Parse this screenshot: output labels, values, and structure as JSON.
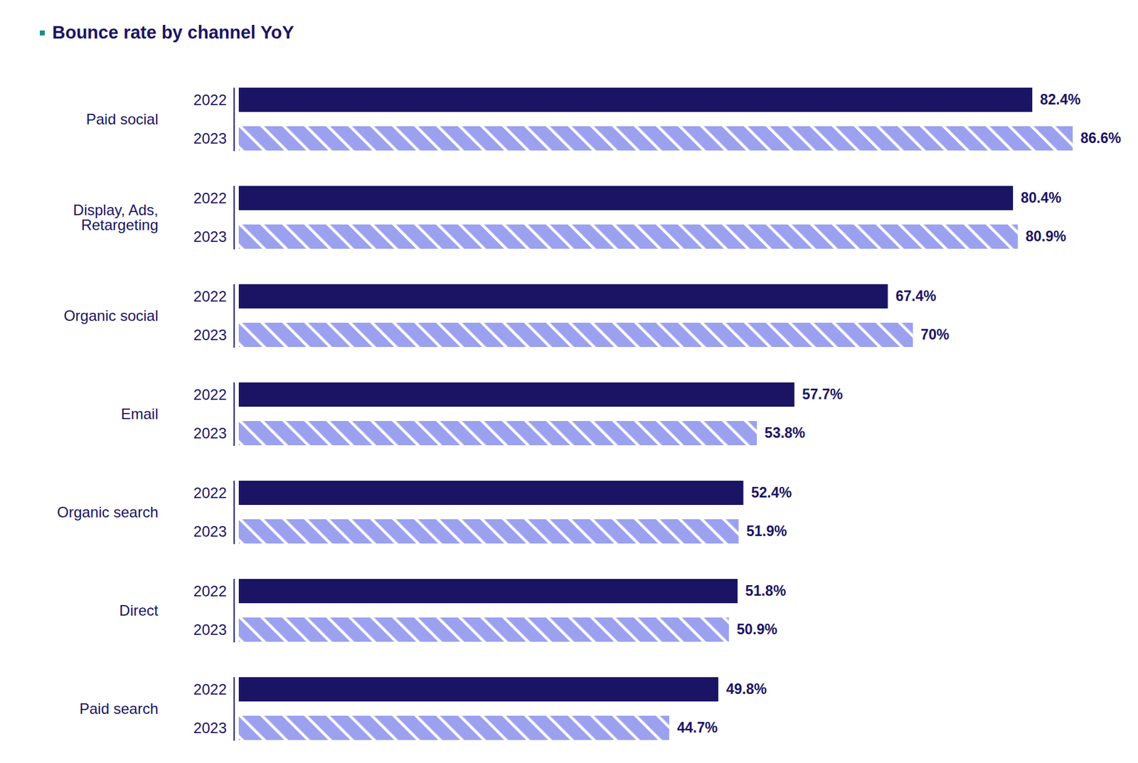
{
  "chart_data": {
    "type": "bar",
    "title": "Bounce rate by channel YoY",
    "orientation": "horizontal",
    "data_labels": true,
    "tick_labels": "y",
    "xlim": [
      0,
      86.6
    ],
    "categories": [
      "Paid social",
      "Display, Ads, Retargeting",
      "Organic social",
      "Email",
      "Organic search",
      "Direct",
      "Paid search"
    ],
    "series": [
      {
        "name": "2022",
        "color": "#1b1464",
        "values": [
          82.4,
          80.4,
          67.4,
          57.7,
          52.4,
          51.8,
          49.8
        ],
        "value_labels": [
          "82.4%",
          "80.4%",
          "67.4%",
          "57.7%",
          "52.4%",
          "51.8%",
          "49.8%"
        ]
      },
      {
        "name": "2023",
        "color": "#9ba1ee",
        "values": [
          86.6,
          80.9,
          70,
          53.8,
          51.9,
          50.9,
          44.7
        ],
        "value_labels": [
          "86.6%",
          "80.9%",
          "70%",
          "53.8%",
          "51.9%",
          "50.9%",
          "44.7%"
        ]
      }
    ]
  }
}
